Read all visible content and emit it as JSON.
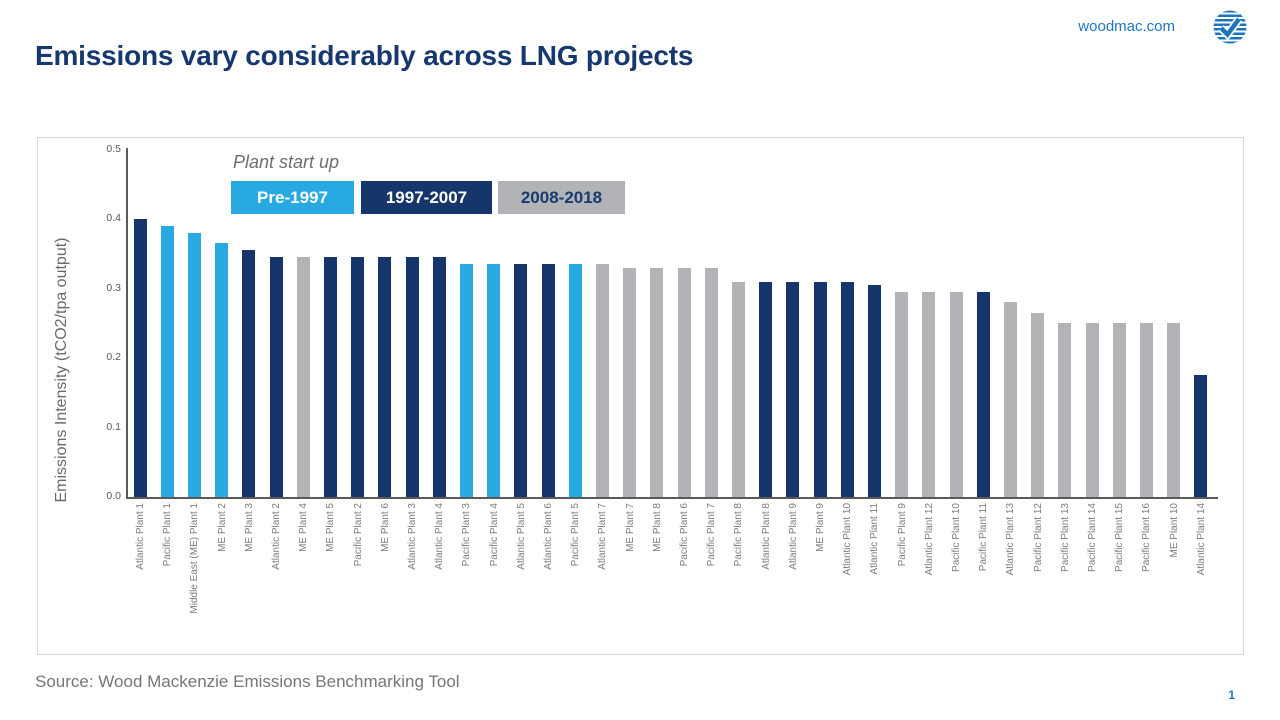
{
  "slide": {
    "title": "Emissions vary considerably across LNG projects",
    "site": "woodmac.com",
    "source": "Source: Wood Mackenzie Emissions Benchmarking Tool",
    "page_number": "1"
  },
  "legend": {
    "title": "Plant start up",
    "items": [
      {
        "label": "Pre-1997",
        "group": "Pre-1997",
        "color": "#29A9E1",
        "text_color": "#FFFFFF"
      },
      {
        "label": "1997-2007",
        "group": "1997-2007",
        "color": "#16366B",
        "text_color": "#FFFFFF"
      },
      {
        "label": "2008-2018",
        "group": "2008-2018",
        "color": "#B1B3B6",
        "text_color": "#1B3A6D"
      }
    ]
  },
  "chart_data": {
    "type": "bar",
    "title": "",
    "xlabel": "",
    "ylabel": "Emissions Intensity (tCO2/tpa output)",
    "ylim": [
      0,
      0.5
    ],
    "yticks": [
      0,
      0.1,
      0.2,
      0.3,
      0.4,
      0.5
    ],
    "grid": false,
    "legend_position": "top-left-inside",
    "group_colors": {
      "Pre-1997": "#29A9E1",
      "1997-2007": "#16366B",
      "2008-2018": "#B1B3B6"
    },
    "bars": [
      {
        "label": "Atlantic Plant 1",
        "value": 0.4,
        "group": "1997-2007"
      },
      {
        "label": "Pacific Plant 1",
        "value": 0.39,
        "group": "Pre-1997"
      },
      {
        "label": "Middle East (ME) Plant 1",
        "value": 0.38,
        "group": "Pre-1997"
      },
      {
        "label": "ME Plant 2",
        "value": 0.365,
        "group": "Pre-1997"
      },
      {
        "label": "ME Plant 3",
        "value": 0.355,
        "group": "1997-2007"
      },
      {
        "label": "Atlantic Plant 2",
        "value": 0.345,
        "group": "1997-2007"
      },
      {
        "label": "ME Plant 4",
        "value": 0.345,
        "group": "2008-2018"
      },
      {
        "label": "ME Plant 5",
        "value": 0.345,
        "group": "1997-2007"
      },
      {
        "label": "Pacific Plant 2",
        "value": 0.345,
        "group": "1997-2007"
      },
      {
        "label": "ME Plant 6",
        "value": 0.345,
        "group": "1997-2007"
      },
      {
        "label": "Atlantic Plant 3",
        "value": 0.345,
        "group": "1997-2007"
      },
      {
        "label": "Atlantic Plant 4",
        "value": 0.345,
        "group": "1997-2007"
      },
      {
        "label": "Pacific Plant 3",
        "value": 0.335,
        "group": "Pre-1997"
      },
      {
        "label": "Pacific Plant 4",
        "value": 0.335,
        "group": "Pre-1997"
      },
      {
        "label": "Atlantic Plant 5",
        "value": 0.335,
        "group": "1997-2007"
      },
      {
        "label": "Atlantic Plant 6",
        "value": 0.335,
        "group": "1997-2007"
      },
      {
        "label": "Pacific Plant 5",
        "value": 0.335,
        "group": "Pre-1997"
      },
      {
        "label": "Atlantic Plant 7",
        "value": 0.335,
        "group": "2008-2018"
      },
      {
        "label": "ME Plant 7",
        "value": 0.33,
        "group": "2008-2018"
      },
      {
        "label": "ME Plant 8",
        "value": 0.33,
        "group": "2008-2018"
      },
      {
        "label": "Pacific Plant 6",
        "value": 0.33,
        "group": "2008-2018"
      },
      {
        "label": "Pacific Plant 7",
        "value": 0.33,
        "group": "2008-2018"
      },
      {
        "label": "Pacific Plant 8",
        "value": 0.31,
        "group": "2008-2018"
      },
      {
        "label": "Atlantic Plant 8",
        "value": 0.31,
        "group": "1997-2007"
      },
      {
        "label": "Atlantic Plant 9",
        "value": 0.31,
        "group": "1997-2007"
      },
      {
        "label": "ME Plant 9",
        "value": 0.31,
        "group": "1997-2007"
      },
      {
        "label": "Atlantic Plant 10",
        "value": 0.31,
        "group": "1997-2007"
      },
      {
        "label": "Atlantic Plant 11",
        "value": 0.305,
        "group": "1997-2007"
      },
      {
        "label": "Pacific Plant 9",
        "value": 0.295,
        "group": "2008-2018"
      },
      {
        "label": "Atlantic Plant 12",
        "value": 0.295,
        "group": "2008-2018"
      },
      {
        "label": "Pacific Plant 10",
        "value": 0.295,
        "group": "2008-2018"
      },
      {
        "label": "Pacific Plant 11",
        "value": 0.295,
        "group": "1997-2007"
      },
      {
        "label": "Atlantic Plant 13",
        "value": 0.28,
        "group": "2008-2018"
      },
      {
        "label": "Pacific Plant 12",
        "value": 0.265,
        "group": "2008-2018"
      },
      {
        "label": "Pacific Plant 13",
        "value": 0.25,
        "group": "2008-2018"
      },
      {
        "label": "Pacific Plant 14",
        "value": 0.25,
        "group": "2008-2018"
      },
      {
        "label": "Pacific Plant 15",
        "value": 0.25,
        "group": "2008-2018"
      },
      {
        "label": "Pacific Plant 16",
        "value": 0.25,
        "group": "2008-2018"
      },
      {
        "label": "ME Plant 10",
        "value": 0.25,
        "group": "2008-2018"
      },
      {
        "label": "Atlantic Plant 14",
        "value": 0.175,
        "group": "1997-2007"
      }
    ]
  }
}
